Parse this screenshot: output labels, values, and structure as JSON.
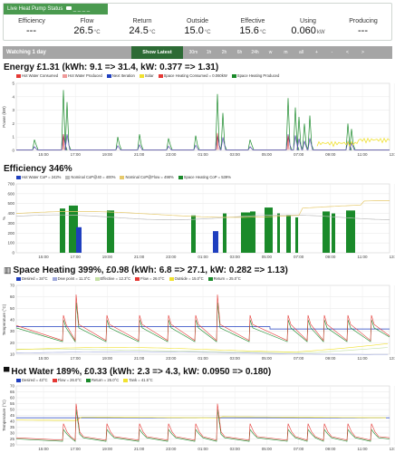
{
  "status": {
    "title": "Live Heat Pump Status",
    "metrics": [
      {
        "label": "Efficiency",
        "value": "---",
        "unit": ""
      },
      {
        "label": "Flow",
        "value": "26.5",
        "unit": "°C"
      },
      {
        "label": "Return",
        "value": "24.5",
        "unit": "°C"
      },
      {
        "label": "Outside",
        "value": "15.0",
        "unit": "°C"
      },
      {
        "label": "Effective",
        "value": "15.6",
        "unit": "°C"
      },
      {
        "label": "Using",
        "value": "0.060",
        "unit": "kW"
      },
      {
        "label": "Producing",
        "value": "---",
        "unit": ""
      }
    ]
  },
  "toolbar": {
    "watching": "Watching 1 day",
    "show_latest": "Show Latest",
    "ranges": [
      "30m",
      "1h",
      "2h",
      "6h",
      "24h",
      "w",
      "m",
      "all",
      "+",
      "-",
      "<",
      ">"
    ]
  },
  "x_ticks": [
    "15:00",
    "17:00",
    "19:00",
    "21:00",
    "23:00",
    "01:00",
    "03:00",
    "05:00",
    "07:00",
    "09:00",
    "11:00",
    "13:00"
  ],
  "charts": [
    {
      "id": "energy",
      "icon": "",
      "title": "Energy £1.31 (kWh: 9.1 => 31.4, kW: 0.377 => 1.31)",
      "ylabel": "Power (kW)",
      "yticks": [
        "0",
        "1",
        "2",
        "3",
        "4",
        "5"
      ],
      "legend": [
        {
          "label": "Hot Water Consumed",
          "color": "#e53935"
        },
        {
          "label": "Hot Water Produced",
          "color": "#ef9a9a"
        },
        {
          "label": "Next Iteration",
          "color": "#1f3fbf"
        },
        {
          "label": "Solar",
          "color": "#f0e130"
        },
        {
          "label": "Space Heating Consumed = 0.060kW",
          "color": "#e53935"
        },
        {
          "label": "Space Heating Produced",
          "color": "#1a8a2a"
        }
      ]
    },
    {
      "id": "efficiency",
      "icon": "",
      "title": "Efficiency 346%",
      "ylabel": "%",
      "yticks": [
        "0",
        "100",
        "200",
        "300",
        "400",
        "500",
        "600",
        "700"
      ],
      "legend": [
        {
          "label": "Hot Water CoP = 242%",
          "color": "#1f3fbf"
        },
        {
          "label": "Nominal CoP@40 = 400%",
          "color": "#bdbdbd"
        },
        {
          "label": "Nominal CoP@Flow = 498%",
          "color": "#e6c96b"
        },
        {
          "label": "Space Heating CoP = 539%",
          "color": "#1a8a2a"
        }
      ]
    },
    {
      "id": "space",
      "icon": "▥",
      "title": "Space Heating 399%, £0.98 (kWh: 6.8 => 27.1, kW: 0.282 => 1.13)",
      "ylabel": "Temperature (°C)",
      "yticks": [
        "10",
        "20",
        "30",
        "40",
        "50",
        "60",
        "70"
      ],
      "legend": [
        {
          "label": "Desired = 34°C",
          "color": "#1f3fbf"
        },
        {
          "label": "Dew point = 11.3°C",
          "color": "#9fa8da"
        },
        {
          "label": "Effective = 12.3°C",
          "color": "#c5e1a5"
        },
        {
          "label": "Flow = 26.0°C",
          "color": "#e53935"
        },
        {
          "label": "Outside = 15.0°C",
          "color": "#f0e130"
        },
        {
          "label": "Return = 25.0°C",
          "color": "#1a8a2a"
        }
      ]
    },
    {
      "id": "hotwater",
      "icon": "▀",
      "title": "Hot Water 189%, £0.33 (kWh: 2.3 => 4.3, kW: 0.0950 => 0.180)",
      "ylabel": "Temperature (°C)",
      "yticks": [
        "20",
        "25",
        "30",
        "35",
        "40",
        "45",
        "50",
        "55",
        "60",
        "65",
        "70"
      ],
      "legend": [
        {
          "label": "Desired = 43°C",
          "color": "#1f3fbf"
        },
        {
          "label": "Flow = 26.0°C",
          "color": "#e53935"
        },
        {
          "label": "Return = 25.0°C",
          "color": "#1a8a2a"
        },
        {
          "label": "Tank = 41.5°C",
          "color": "#f0e130"
        }
      ]
    }
  ]
}
